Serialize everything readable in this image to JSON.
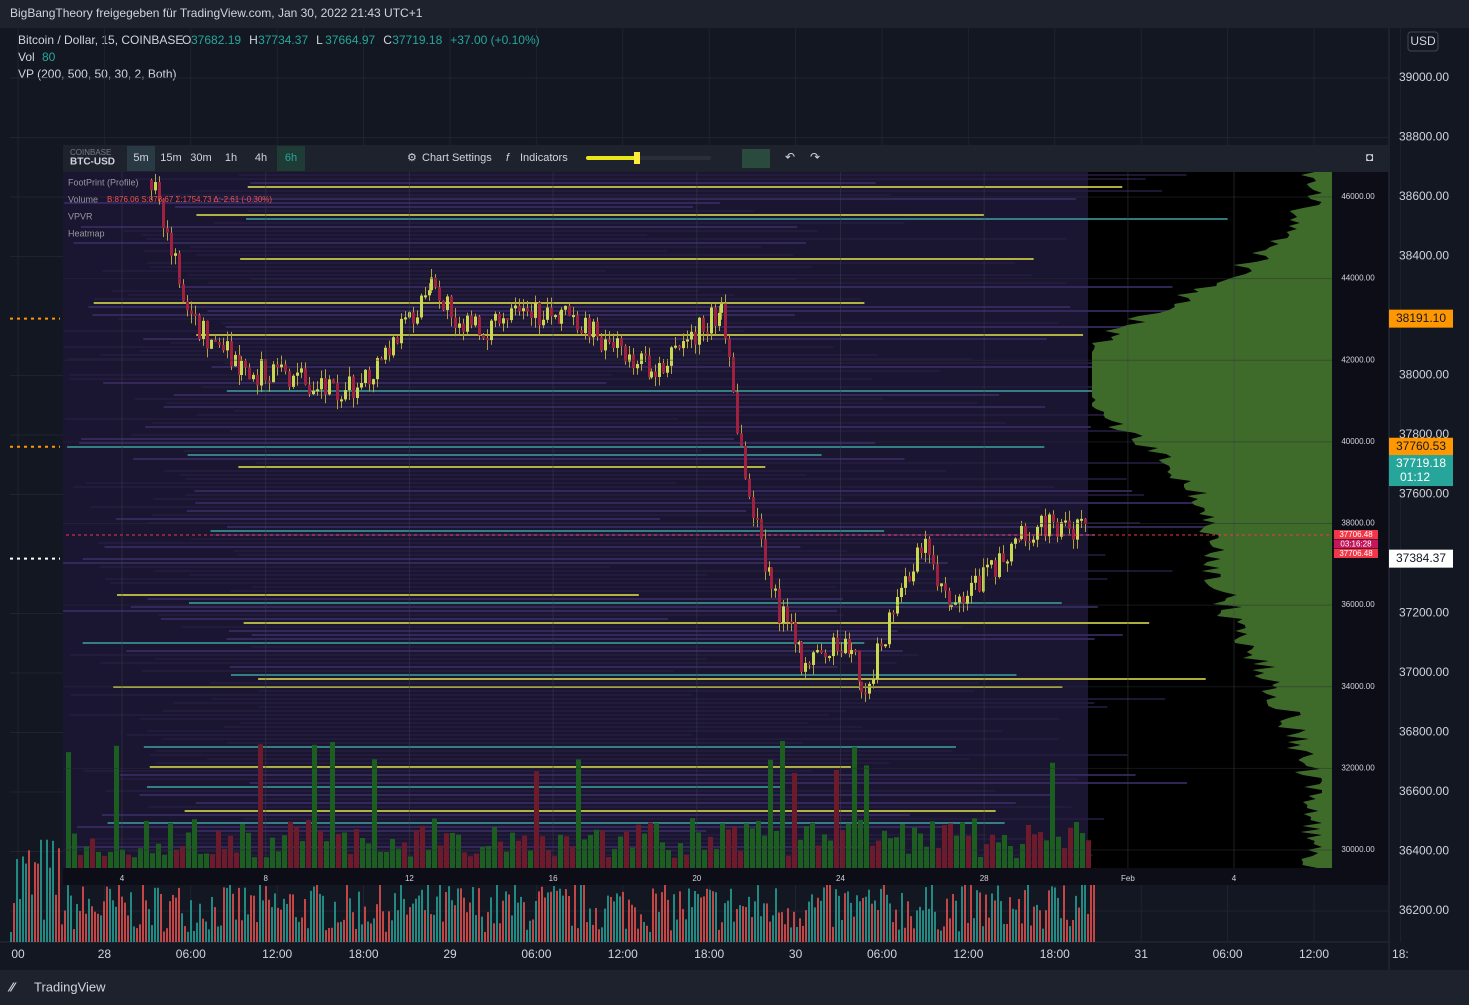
{
  "header": {
    "share": "BigBangTheory freigegeben für TradingView.com, Jan 30, 2022 21:43 UTC+1",
    "symbol": "Bitcoin / Dollar, 15, COINBASE",
    "ohlc": [
      {
        "label": "O",
        "value": "37682.19"
      },
      {
        "label": "H",
        "value": "37734.37"
      },
      {
        "label": "L",
        "value": "37664.97"
      },
      {
        "label": "C",
        "value": "37719.18"
      }
    ],
    "change": "+37.00 (+0.10%)",
    "vol_label": "Vol",
    "vol_value": "80",
    "vp": "VP (200, 500, 50, 30, 2, Both)",
    "currency": "USD"
  },
  "price_axis": {
    "ylim": [
      36200,
      39000
    ],
    "yticks": [
      {
        "value": 39000,
        "label": "39000.00"
      },
      {
        "value": 38800,
        "label": "38800.00"
      },
      {
        "value": 38600,
        "label": "38600.00"
      },
      {
        "value": 38400,
        "label": "38400.00"
      },
      {
        "value": 38000,
        "label": "38000.00"
      },
      {
        "value": 37800,
        "label": "37800.00"
      },
      {
        "value": 37600,
        "label": "37600.00"
      },
      {
        "value": 37200,
        "label": "37200.00"
      },
      {
        "value": 37000,
        "label": "37000.00"
      },
      {
        "value": 36800,
        "label": "36800.00"
      },
      {
        "value": 36600,
        "label": "36600.00"
      },
      {
        "value": 36400,
        "label": "36400.00"
      },
      {
        "value": 36200,
        "label": "36200.00"
      }
    ],
    "price_labels": [
      {
        "value": 38191.1,
        "label": "38191.10",
        "color": "#ff9800"
      },
      {
        "value": 37760.53,
        "label": "37760.53",
        "color": "#ff9800"
      },
      {
        "value": 37384.37,
        "label": "37384.37",
        "color": "#ffffff"
      }
    ],
    "last": {
      "value": 37719.18,
      "label": "37719.18",
      "countdown": "01:12",
      "color": "#26a69a"
    }
  },
  "time_axis": [
    "00",
    "28",
    "06:00",
    "12:00",
    "18:00",
    "29",
    "06:00",
    "12:00",
    "18:00",
    "30",
    "06:00",
    "12:00",
    "18:00",
    "31",
    "06:00",
    "12:00",
    "18:"
  ],
  "footer": "TradingView",
  "widget": {
    "exchange": "COINBASE",
    "pair": "BTC-USD",
    "intervals": [
      "5m",
      "15m",
      "30m",
      "1h",
      "4h",
      "6h"
    ],
    "settings": "Chart Settings",
    "indicators": "Indicators",
    "legend": [
      "FootPrint (Profile)",
      "Volume",
      "VPVR",
      "Heatmap"
    ],
    "stats": "B:876.06 S:878.67 Σ:1754.73 Δ:-2.61 (-0.30%)",
    "ylim": [
      30000,
      46000
    ],
    "yticks": [
      {
        "value": 46000,
        "label": "46000.00"
      },
      {
        "value": 44000,
        "label": "44000.00"
      },
      {
        "value": 42000,
        "label": "42000.00"
      },
      {
        "value": 40000,
        "label": "40000.00"
      },
      {
        "value": 38000,
        "label": "38000.00"
      },
      {
        "value": 36000,
        "label": "36000.00"
      },
      {
        "value": 34000,
        "label": "34000.00"
      },
      {
        "value": 32000,
        "label": "32000.00"
      },
      {
        "value": 30000,
        "label": "30000.00"
      }
    ],
    "xticks": [
      "4",
      "8",
      "12",
      "16",
      "20",
      "24",
      "28",
      "Feb",
      "4"
    ],
    "price_tag": [
      "37706.48",
      "03:16:28",
      "37706.48"
    ]
  }
}
